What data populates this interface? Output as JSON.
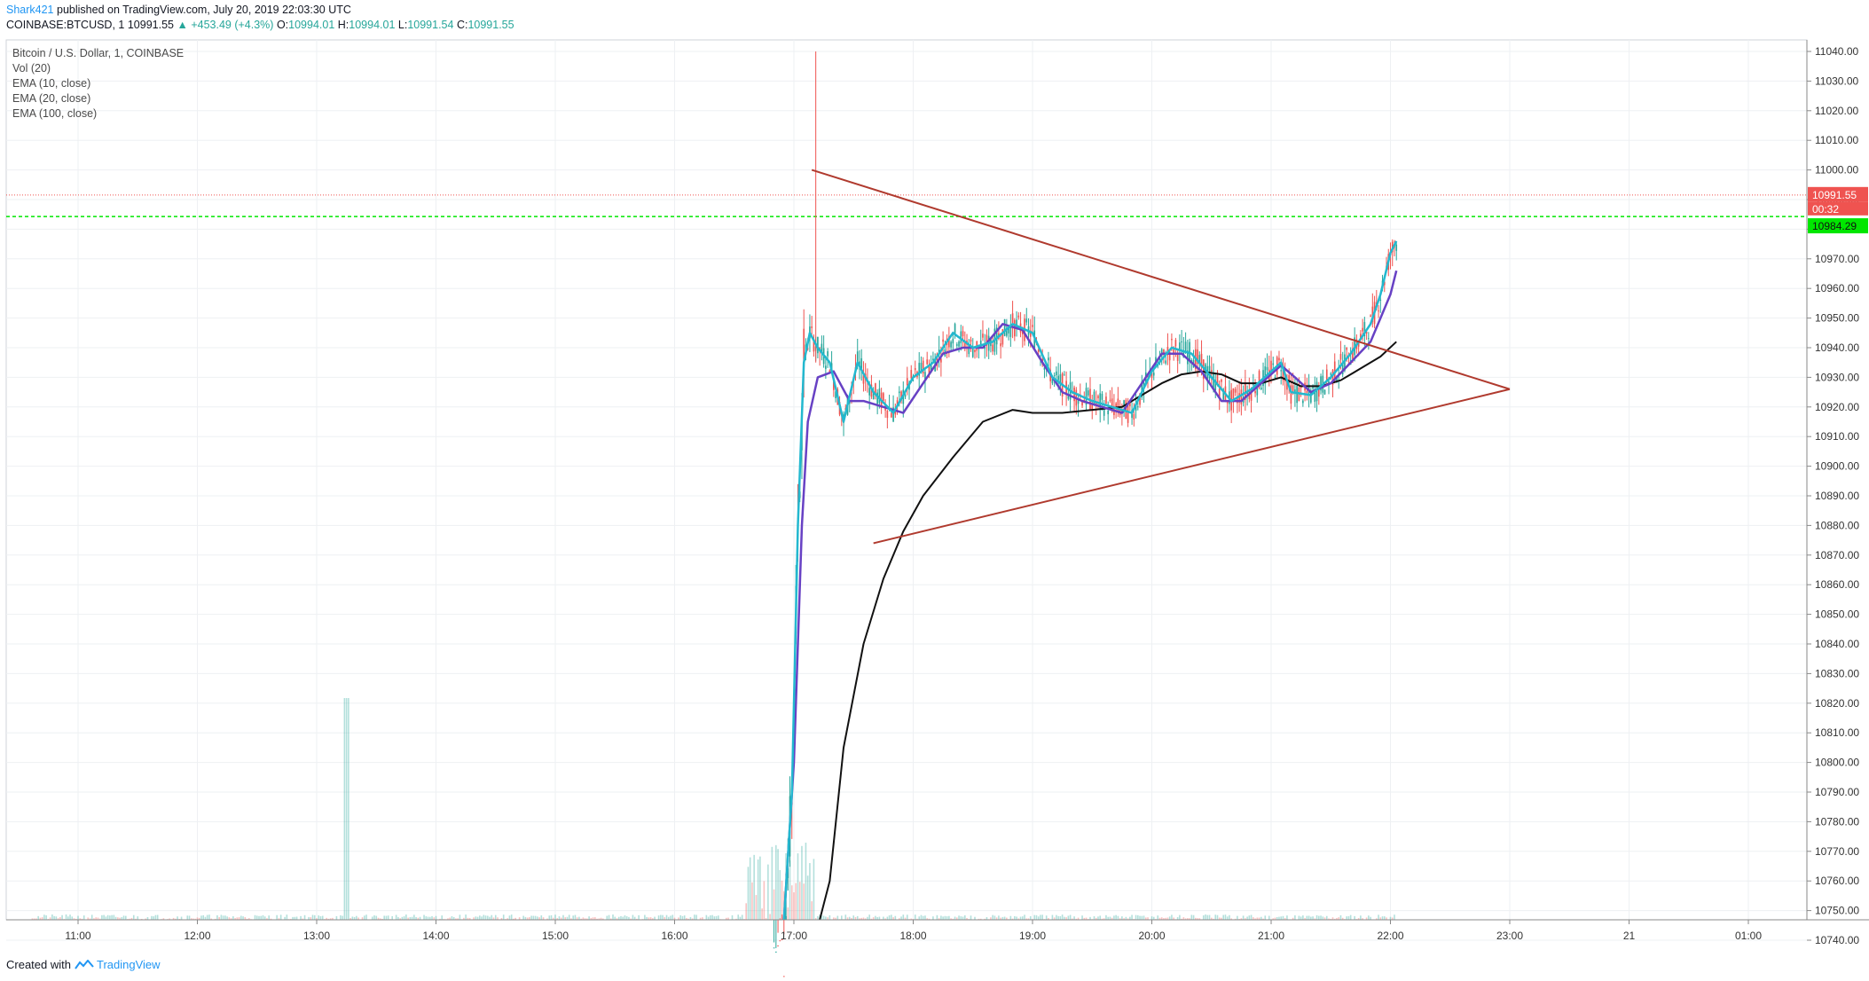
{
  "header": {
    "author": "Shark421",
    "published": "published on TradingView.com, July 20, 2019 22:03:30 UTC",
    "symbol": "COINBASE:BTCUSD, 1",
    "last": "10991.55",
    "change": "▲ +453.49 (+4.3%)",
    "o_label": "O:",
    "o_val": "10994.01",
    "h_label": "H:",
    "h_val": "10994.01",
    "l_label": "L:",
    "l_val": "10991.54",
    "c_label": "C:",
    "c_val": "10991.55"
  },
  "legend": {
    "title": "Bitcoin / U.S. Dollar, 1, COINBASE",
    "vol": "Vol (20)",
    "ema10": "EMA (10, close)",
    "ema20": "EMA (20, close)",
    "ema100": "EMA (100, close)"
  },
  "footer": {
    "created": "Created with",
    "brand": "TradingView"
  },
  "colors": {
    "up": "#26a69a",
    "down": "#ef5350",
    "ema10": "#22b8cf",
    "ema20": "#6741c4",
    "ema100": "#111111",
    "trend": "#b03a2e",
    "priceTag": "#ef5350",
    "greenTag": "#00e600"
  },
  "chart_data": {
    "type": "candlestick",
    "x_label_ticks": [
      "11:00",
      "12:00",
      "13:00",
      "14:00",
      "15:00",
      "16:00",
      "17:00",
      "18:00",
      "19:00",
      "20:00",
      "21:00",
      "22:00",
      "23:00",
      "21",
      "01:00"
    ],
    "y_ticks": [
      11040,
      11030,
      11020,
      11010,
      11000,
      10990,
      10980,
      10970,
      10960,
      10950,
      10940,
      10930,
      10920,
      10910,
      10900,
      10890,
      10880,
      10870,
      10860,
      10850,
      10840,
      10830,
      10820,
      10810,
      10800,
      10790,
      10780,
      10770,
      10760,
      10750,
      10740
    ],
    "ylim": [
      10736,
      11043
    ],
    "x_range_hours": [
      10.55,
      1.55
    ],
    "last_price": 10991.55,
    "last_price_label": "10991.55",
    "countdown_label": "00:32",
    "green_level": 10984.29,
    "green_level_label": "10984.29",
    "triangle": {
      "upper": [
        [
          "17:09",
          11000
        ],
        [
          "23:00",
          10926
        ]
      ],
      "lower": [
        [
          "17:40",
          10874
        ],
        [
          "23:00",
          10926
        ]
      ]
    },
    "ema10": [
      [
        "16:55",
        10736
      ],
      [
        "16:59",
        10790
      ],
      [
        "17:02",
        10880
      ],
      [
        "17:05",
        10935
      ],
      [
        "17:08",
        10945
      ],
      [
        "17:12",
        10940
      ],
      [
        "17:18",
        10935
      ],
      [
        "17:25",
        10915
      ],
      [
        "17:32",
        10935
      ],
      [
        "17:40",
        10925
      ],
      [
        "17:50",
        10918
      ],
      [
        "18:00",
        10930
      ],
      [
        "18:10",
        10935
      ],
      [
        "18:20",
        10945
      ],
      [
        "18:30",
        10940
      ],
      [
        "18:40",
        10942
      ],
      [
        "18:50",
        10948
      ],
      [
        "19:00",
        10945
      ],
      [
        "19:10",
        10930
      ],
      [
        "19:20",
        10925
      ],
      [
        "19:30",
        10922
      ],
      [
        "19:40",
        10920
      ],
      [
        "19:50",
        10918
      ],
      [
        "20:00",
        10932
      ],
      [
        "20:10",
        10940
      ],
      [
        "20:20",
        10938
      ],
      [
        "20:30",
        10930
      ],
      [
        "20:40",
        10922
      ],
      [
        "20:50",
        10926
      ],
      [
        "21:00",
        10932
      ],
      [
        "21:05",
        10935
      ],
      [
        "21:10",
        10925
      ],
      [
        "21:20",
        10924
      ],
      [
        "21:30",
        10930
      ],
      [
        "21:40",
        10938
      ],
      [
        "21:50",
        10948
      ],
      [
        "21:55",
        10958
      ],
      [
        "22:00",
        10972
      ],
      [
        "22:03",
        10976
      ]
    ],
    "ema20": [
      [
        "16:55",
        10736
      ],
      [
        "17:00",
        10800
      ],
      [
        "17:04",
        10880
      ],
      [
        "17:07",
        10915
      ],
      [
        "17:12",
        10930
      ],
      [
        "17:20",
        10932
      ],
      [
        "17:28",
        10922
      ],
      [
        "17:35",
        10922
      ],
      [
        "17:45",
        10920
      ],
      [
        "17:55",
        10918
      ],
      [
        "18:05",
        10928
      ],
      [
        "18:15",
        10938
      ],
      [
        "18:25",
        10940
      ],
      [
        "18:35",
        10940
      ],
      [
        "18:45",
        10948
      ],
      [
        "18:55",
        10946
      ],
      [
        "19:05",
        10935
      ],
      [
        "19:15",
        10925
      ],
      [
        "19:25",
        10922
      ],
      [
        "19:35",
        10920
      ],
      [
        "19:45",
        10918
      ],
      [
        "19:55",
        10928
      ],
      [
        "20:05",
        10938
      ],
      [
        "20:15",
        10938
      ],
      [
        "20:25",
        10932
      ],
      [
        "20:35",
        10922
      ],
      [
        "20:45",
        10922
      ],
      [
        "20:55",
        10928
      ],
      [
        "21:05",
        10934
      ],
      [
        "21:12",
        10930
      ],
      [
        "21:20",
        10925
      ],
      [
        "21:30",
        10928
      ],
      [
        "21:40",
        10935
      ],
      [
        "21:50",
        10942
      ],
      [
        "21:55",
        10950
      ],
      [
        "22:00",
        10958
      ],
      [
        "22:03",
        10966
      ]
    ],
    "ema100": [
      [
        "17:13",
        10736
      ],
      [
        "17:18",
        10760
      ],
      [
        "17:25",
        10805
      ],
      [
        "17:35",
        10840
      ],
      [
        "17:45",
        10862
      ],
      [
        "17:55",
        10878
      ],
      [
        "18:05",
        10890
      ],
      [
        "18:20",
        10903
      ],
      [
        "18:35",
        10915
      ],
      [
        "18:50",
        10919
      ],
      [
        "19:00",
        10918
      ],
      [
        "19:15",
        10918
      ],
      [
        "19:30",
        10919
      ],
      [
        "19:45",
        10920
      ],
      [
        "19:55",
        10924
      ],
      [
        "20:05",
        10928
      ],
      [
        "20:15",
        10931
      ],
      [
        "20:25",
        10932
      ],
      [
        "20:35",
        10931
      ],
      [
        "20:45",
        10928
      ],
      [
        "20:55",
        10928
      ],
      [
        "21:05",
        10930
      ],
      [
        "21:15",
        10927
      ],
      [
        "21:25",
        10927
      ],
      [
        "21:35",
        10929
      ],
      [
        "21:45",
        10933
      ],
      [
        "21:55",
        10937
      ],
      [
        "22:03",
        10942
      ]
    ]
  }
}
